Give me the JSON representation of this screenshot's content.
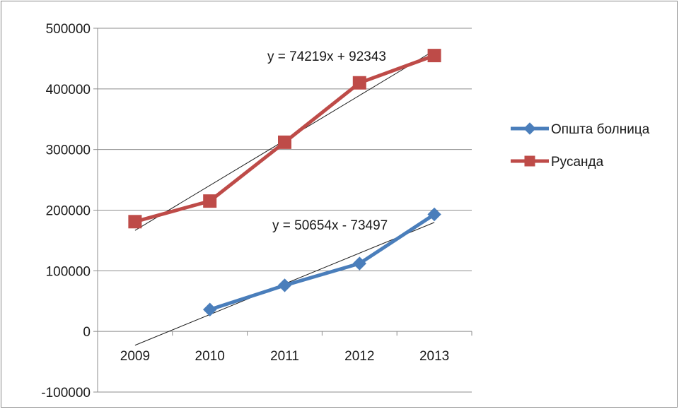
{
  "chart_data": {
    "type": "line",
    "categories": [
      "2009",
      "2010",
      "2011",
      "2012",
      "2013"
    ],
    "ylim": [
      -100000,
      500000
    ],
    "yticks": [
      -100000,
      0,
      100000,
      200000,
      300000,
      400000,
      500000
    ],
    "ytick_labels": [
      "-100000",
      "0",
      "100000",
      "200000",
      "300000",
      "400000",
      "500000"
    ],
    "grid": true,
    "legend_position": "right",
    "series": [
      {
        "name": "Општа болница",
        "color": "#4a7ebb",
        "marker": "diamond",
        "values": [
          null,
          36000,
          76000,
          112000,
          193000
        ],
        "trendline": {
          "slope": 50654,
          "intercept": -73497,
          "label": "y = 50654x - 73497"
        }
      },
      {
        "name": "Русанда",
        "color": "#be4b48",
        "marker": "square",
        "values": [
          181000,
          215000,
          312000,
          410000,
          455000
        ],
        "trendline": {
          "slope": 74219,
          "intercept": 92343,
          "label": "y = 74219x + 92343"
        }
      }
    ]
  }
}
